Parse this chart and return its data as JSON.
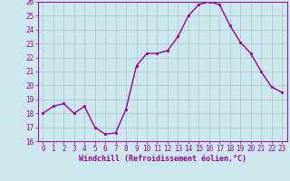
{
  "x": [
    0,
    1,
    2,
    3,
    4,
    5,
    6,
    7,
    8,
    9,
    10,
    11,
    12,
    13,
    14,
    15,
    16,
    17,
    18,
    19,
    20,
    21,
    22,
    23
  ],
  "y": [
    18.0,
    18.5,
    18.7,
    18.0,
    18.5,
    17.0,
    16.5,
    16.6,
    18.3,
    21.4,
    22.3,
    22.3,
    22.5,
    23.5,
    25.0,
    25.8,
    26.0,
    25.8,
    24.3,
    23.1,
    22.3,
    21.0,
    19.9,
    19.5
  ],
  "line_color": "#990099",
  "marker": "s",
  "markersize": 2.0,
  "linewidth": 1.0,
  "bg_color": "#cce8ee",
  "grid_color": "#aacccc",
  "xlabel": "Windchill (Refroidissement éolien,°C)",
  "xlabel_color": "#990099",
  "tick_color": "#990099",
  "ylim": [
    16,
    26
  ],
  "xlim_min": -0.5,
  "xlim_max": 23.5,
  "yticks": [
    16,
    17,
    18,
    19,
    20,
    21,
    22,
    23,
    24,
    25,
    26
  ],
  "xticks": [
    0,
    1,
    2,
    3,
    4,
    5,
    6,
    7,
    8,
    9,
    10,
    11,
    12,
    13,
    14,
    15,
    16,
    17,
    18,
    19,
    20,
    21,
    22,
    23
  ],
  "xlabel_fontsize": 6.0,
  "tick_fontsize": 5.5
}
